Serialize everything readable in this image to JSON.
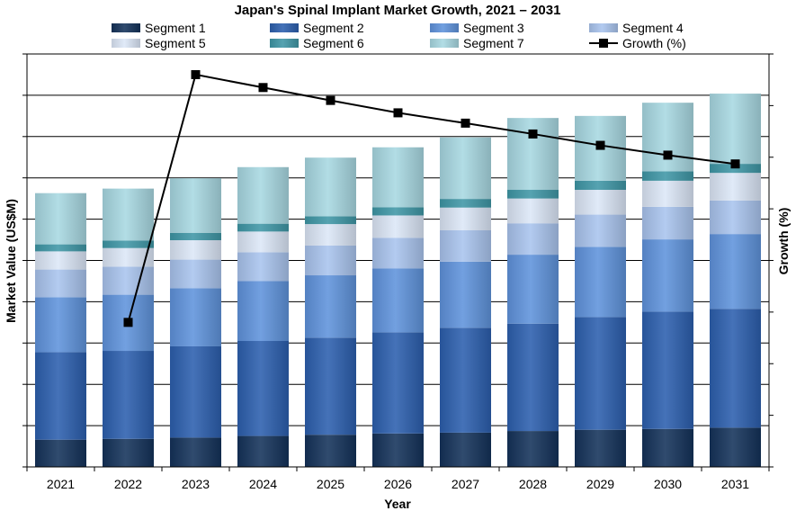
{
  "chart_data": {
    "type": "bar",
    "stacked": true,
    "title": "Japan's Spinal Implant Market Growth, 2021 – 2031",
    "xlabel": "Year",
    "ylabel": "Market Value (US$M)",
    "y2label": "Growth (%)",
    "categories": [
      "2021",
      "2022",
      "2023",
      "2024",
      "2025",
      "2026",
      "2027",
      "2028",
      "2029",
      "2030",
      "2031"
    ],
    "ylim": [
      0,
      10
    ],
    "y2lim": [
      0,
      8
    ],
    "y_ticks_labeled": false,
    "grid": true,
    "legend": "top",
    "series": [
      {
        "name": "Segment 1",
        "color": "#14325a",
        "values": [
          0.66,
          0.68,
          0.71,
          0.75,
          0.78,
          0.81,
          0.83,
          0.87,
          0.9,
          0.92,
          0.95
        ]
      },
      {
        "name": "Segment 2",
        "color": "#2c5fae",
        "values": [
          2.12,
          2.13,
          2.21,
          2.3,
          2.35,
          2.45,
          2.54,
          2.6,
          2.73,
          2.84,
          2.88
        ]
      },
      {
        "name": "Segment 3",
        "color": "#5f93dc",
        "values": [
          1.33,
          1.36,
          1.41,
          1.45,
          1.51,
          1.55,
          1.6,
          1.67,
          1.7,
          1.75,
          1.81
        ]
      },
      {
        "name": "Segment 4",
        "color": "#a9c4ee",
        "values": [
          0.67,
          0.68,
          0.69,
          0.7,
          0.72,
          0.74,
          0.76,
          0.76,
          0.78,
          0.79,
          0.81
        ]
      },
      {
        "name": "Segment 5",
        "color": "#dce7f7",
        "values": [
          0.44,
          0.45,
          0.47,
          0.5,
          0.52,
          0.54,
          0.55,
          0.6,
          0.6,
          0.63,
          0.67
        ]
      },
      {
        "name": "Segment 6",
        "color": "#3f97a6",
        "values": [
          0.17,
          0.18,
          0.18,
          0.19,
          0.19,
          0.2,
          0.21,
          0.21,
          0.22,
          0.23,
          0.22
        ]
      },
      {
        "name": "Segment 7",
        "color": "#a8d8e2",
        "values": [
          1.24,
          1.26,
          1.32,
          1.37,
          1.42,
          1.45,
          1.49,
          1.74,
          1.57,
          1.66,
          1.7
        ]
      }
    ],
    "line_series": {
      "name": "Growth (%)",
      "axis": "right",
      "color": "#000000",
      "x": [
        "2022",
        "2023",
        "2024",
        "2025",
        "2026",
        "2027",
        "2028",
        "2029",
        "2030",
        "2031"
      ],
      "values": [
        2.8,
        7.6,
        7.35,
        7.1,
        6.86,
        6.66,
        6.45,
        6.23,
        6.04,
        5.87
      ]
    }
  }
}
